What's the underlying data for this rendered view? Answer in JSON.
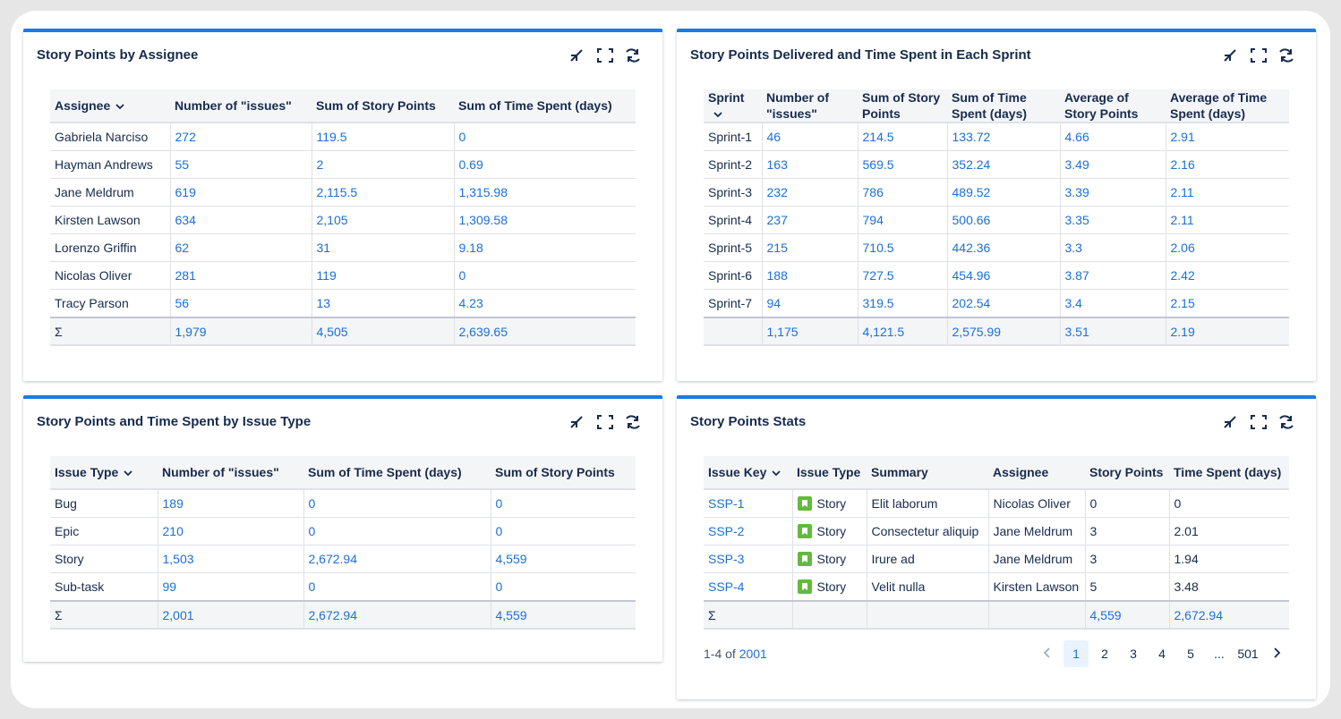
{
  "panels": [
    {
      "title": "Story Points by Assignee",
      "table": {
        "columns": [
          "Assignee",
          "Number of \"issues\"",
          "Sum of Story Points",
          "Sum of Time Spent (days)"
        ],
        "rows": [
          [
            "Gabriela Narciso",
            "272",
            "119.5",
            "0"
          ],
          [
            "Hayman Andrews",
            "55",
            "2",
            "0.69"
          ],
          [
            "Jane Meldrum",
            "619",
            "2,115.5",
            "1,315.98"
          ],
          [
            "Kirsten Lawson",
            "634",
            "2,105",
            "1,309.58"
          ],
          [
            "Lorenzo Griffin",
            "62",
            "31",
            "9.18"
          ],
          [
            "Nicolas Oliver",
            "281",
            "119",
            "0"
          ],
          [
            "Tracy Parson",
            "56",
            "13",
            "4.23"
          ]
        ],
        "total": {
          "label": "Σ",
          "values": [
            "1,979",
            "4,505",
            "2,639.65"
          ]
        }
      }
    },
    {
      "title": "Story Points Delivered and Time Spent in Each Sprint",
      "table": {
        "columns": [
          "Sprint",
          "Number of \"issues\"",
          "Sum of Story Points",
          "Sum of Time Spent (days)",
          "Average of Story Points",
          "Average of Time Spent (days)"
        ],
        "rows": [
          [
            "Sprint-1",
            "46",
            "214.5",
            "133.72",
            "4.66",
            "2.91"
          ],
          [
            "Sprint-2",
            "163",
            "569.5",
            "352.24",
            "3.49",
            "2.16"
          ],
          [
            "Sprint-3",
            "232",
            "786",
            "489.52",
            "3.39",
            "2.11"
          ],
          [
            "Sprint-4",
            "237",
            "794",
            "500.66",
            "3.35",
            "2.11"
          ],
          [
            "Sprint-5",
            "215",
            "710.5",
            "442.36",
            "3.3",
            "2.06"
          ],
          [
            "Sprint-6",
            "188",
            "727.5",
            "454.96",
            "3.87",
            "2.42"
          ],
          [
            "Sprint-7",
            "94",
            "319.5",
            "202.54",
            "3.4",
            "2.15"
          ]
        ],
        "total": {
          "values": [
            "1,175",
            "4,121.5",
            "2,575.99",
            "3.51",
            "2.19"
          ]
        }
      }
    },
    {
      "title": "Story Points and Time Spent by Issue Type",
      "table": {
        "columns": [
          "Issue Type",
          "Number of \"issues\"",
          "Sum of Time Spent (days)",
          "Sum of Story Points"
        ],
        "rows": [
          [
            "Bug",
            "189",
            "0",
            "0"
          ],
          [
            "Epic",
            "210",
            "0",
            "0"
          ],
          [
            "Story",
            "1,503",
            "2,672.94",
            "4,559"
          ],
          [
            "Sub-task",
            "99",
            "0",
            "0"
          ]
        ],
        "total": {
          "label": "Σ",
          "values": [
            "2,001",
            "2,672.94",
            "4,559"
          ]
        }
      }
    },
    {
      "title": "Story Points Stats",
      "table": {
        "columns": [
          "Issue Key",
          "Issue Type",
          "Summary",
          "Assignee",
          "Story Points",
          "Time Spent (days)"
        ],
        "rows": [
          [
            "SSP-1",
            "Story",
            "Elit laborum",
            "Nicolas Oliver",
            "0",
            "0"
          ],
          [
            "SSP-2",
            "Story",
            "Consectetur aliquip",
            "Jane Meldrum",
            "3",
            "2.01"
          ],
          [
            "SSP-3",
            "Story",
            "Irure ad",
            "Jane Meldrum",
            "3",
            "1.94"
          ],
          [
            "SSP-4",
            "Story",
            "Velit nulla",
            "Kirsten Lawson",
            "5",
            "3.48"
          ]
        ],
        "total": {
          "label": "Σ",
          "values": [
            "4,559",
            "2,672.94"
          ]
        }
      },
      "pagination": {
        "range": "1-4 of",
        "count": "2001",
        "pages": [
          "1",
          "2",
          "3",
          "4",
          "5",
          "...",
          "501"
        ]
      }
    }
  ]
}
